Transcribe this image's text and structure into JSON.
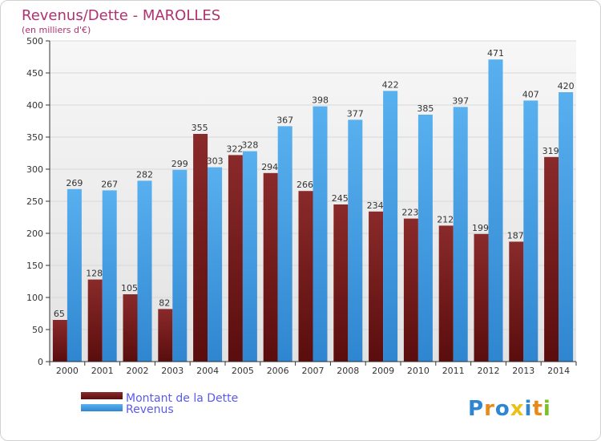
{
  "chart_data": {
    "type": "bar",
    "title": "Revenus/Dette - MAROLLES",
    "subtitle": "(en milliers d'€)",
    "categories": [
      "2000",
      "2001",
      "2002",
      "2003",
      "2004",
      "2005",
      "2006",
      "2007",
      "2008",
      "2009",
      "2010",
      "2011",
      "2012",
      "2013",
      "2014"
    ],
    "series": [
      {
        "name": "Montant de la Dette",
        "color": "#7b1d1d",
        "values": [
          65,
          128,
          105,
          82,
          355,
          322,
          294,
          266,
          245,
          234,
          223,
          212,
          199,
          187,
          319
        ]
      },
      {
        "name": "Revenus",
        "color": "#4aa3e8",
        "values": [
          269,
          267,
          282,
          299,
          303,
          328,
          367,
          398,
          377,
          422,
          385,
          397,
          471,
          407,
          420
        ]
      }
    ],
    "ylim": [
      0,
      500
    ],
    "yticks": [
      0,
      50,
      100,
      150,
      200,
      250,
      300,
      350,
      400,
      450,
      500
    ],
    "grid": true,
    "legend": "bottom-left",
    "colors": {
      "title": "#b03070",
      "legend_text": "#5a5af0",
      "axis": "#333333",
      "grid": "#dddddd",
      "background": "#f0f0f0"
    }
  },
  "logo": {
    "text": "Proxiti"
  }
}
